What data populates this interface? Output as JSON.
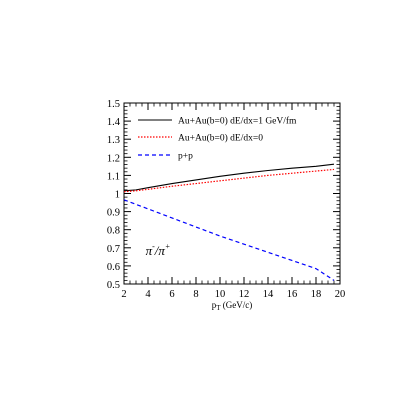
{
  "chart_data": {
    "type": "line",
    "title": "",
    "xlabel": "p",
    "xlabel_subscript": "T",
    "xlabel_suffix": " (GeV/c)",
    "ylabel": "",
    "xlim": [
      2,
      20
    ],
    "ylim": [
      0.5,
      1.5
    ],
    "grid": false,
    "legend_position": "top-left",
    "x_ticks": [
      2,
      4,
      6,
      8,
      10,
      12,
      14,
      16,
      18,
      20
    ],
    "x_tick_labels": [
      "2",
      "4",
      "6",
      "8",
      "10",
      "12",
      "14",
      "16",
      "18",
      "20"
    ],
    "y_ticks": [
      0.5,
      0.6,
      0.7,
      0.8,
      0.9,
      1.0,
      1.1,
      1.2,
      1.3,
      1.4,
      1.5
    ],
    "y_tick_labels": [
      "0.5",
      "0.6",
      "0.7",
      "0.8",
      "0.9",
      "1",
      "1.1",
      "1.2",
      "1.3",
      "1.4",
      "1.5"
    ],
    "annotation": {
      "text_parts": [
        "π",
        "-",
        "/π",
        "+"
      ],
      "x": 3.8,
      "y": 0.66
    },
    "series": [
      {
        "name": "Au+Au(b=0) dE/dx=1 GeV/fm",
        "color": "#000000",
        "style": "solid",
        "x": [
          2,
          3,
          4,
          6,
          8,
          10,
          12,
          14,
          16,
          18,
          19.5
        ],
        "y": [
          1.015,
          1.02,
          1.032,
          1.055,
          1.075,
          1.095,
          1.112,
          1.127,
          1.14,
          1.15,
          1.162
        ]
      },
      {
        "name": "Au+Au(b=0) dE/dx=0",
        "color": "#ff0000",
        "style": "dotted",
        "x": [
          2,
          3,
          4,
          6,
          8,
          10,
          12,
          14,
          16,
          18,
          19.5
        ],
        "y": [
          1.01,
          1.015,
          1.023,
          1.04,
          1.055,
          1.07,
          1.085,
          1.1,
          1.112,
          1.124,
          1.133
        ]
      },
      {
        "name": "p+p",
        "color": "#0000ff",
        "style": "dashed",
        "x": [
          2,
          3,
          4,
          6,
          8,
          10,
          12,
          14,
          16,
          18,
          19.5
        ],
        "y": [
          0.965,
          0.94,
          0.915,
          0.865,
          0.815,
          0.765,
          0.72,
          0.675,
          0.63,
          0.585,
          0.52
        ]
      }
    ]
  }
}
